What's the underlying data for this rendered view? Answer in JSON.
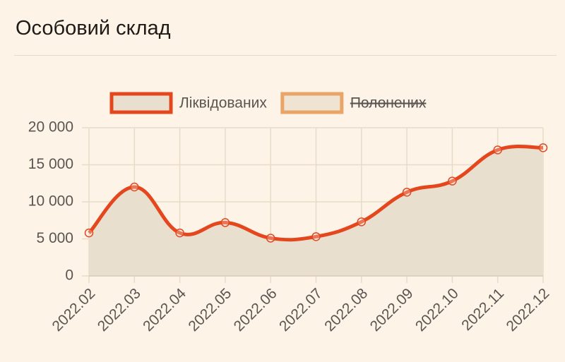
{
  "header": {
    "title": "Особовий склад"
  },
  "chart_data": {
    "type": "line",
    "categories": [
      "2022.02",
      "2022.03",
      "2022.04",
      "2022.05",
      "2022.06",
      "2022.07",
      "2022.08",
      "2022.09",
      "2022.10",
      "2022.11",
      "2022.12"
    ],
    "series": [
      {
        "name": "Ліквідованих",
        "color": "#e4471e",
        "fill": "#e9dfcf",
        "hidden": false,
        "values": [
          5800,
          12000,
          5800,
          7200,
          5100,
          5300,
          7300,
          11300,
          12800,
          17000,
          17300
        ]
      },
      {
        "name": "Полонених",
        "color": "#e9a567",
        "fill": "#efe3d2",
        "hidden": true,
        "values": [
          null,
          null,
          null,
          null,
          null,
          null,
          null,
          null,
          null,
          null,
          null
        ]
      }
    ],
    "ylim": [
      0,
      20000
    ],
    "yticks": [
      0,
      {
        "value": 5000,
        "label": "5 000"
      },
      {
        "value": 10000,
        "label": "10 000"
      },
      {
        "value": 15000,
        "label": "15 000"
      },
      {
        "value": 20000,
        "label": "20 000"
      }
    ],
    "grid": true,
    "legend": "top"
  }
}
